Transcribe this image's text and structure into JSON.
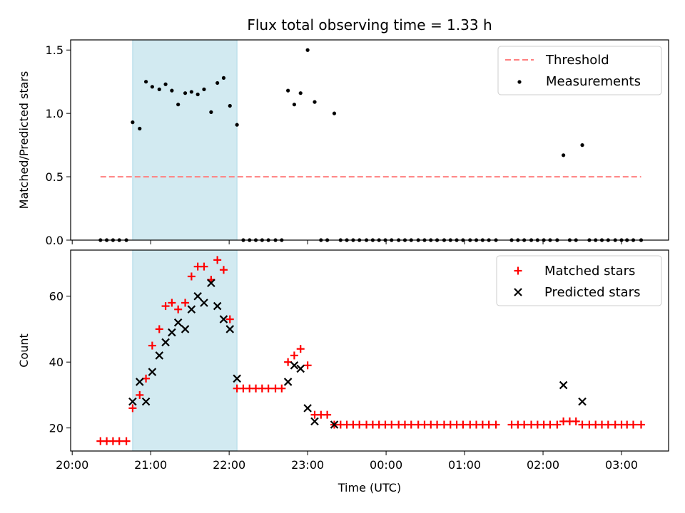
{
  "title": "Flux total observing time = 1.33 h",
  "xlabel": "Time (UTC)",
  "x_ticks": [
    "20:00",
    "21:00",
    "22:00",
    "23:00",
    "00:00",
    "01:00",
    "02:00",
    "03:00"
  ],
  "colors": {
    "threshold": "#ff7f7f",
    "measurement": "#000000",
    "matched": "#ff0000",
    "predicted": "#000000",
    "span": "#add8e6"
  },
  "chart_data": [
    {
      "type": "scatter",
      "ylabel": "Matched/Predicted stars",
      "ylim": [
        0,
        1.58
      ],
      "y_ticks": [
        "0.0",
        "0.5",
        "1.0",
        "1.5"
      ],
      "highlight_span_hours": [
        20.77,
        22.1
      ],
      "threshold": {
        "name": "Threshold",
        "value": 0.5,
        "x_range_hours": [
          20.36,
          27.25
        ]
      },
      "legend": [
        "Threshold",
        "Measurements"
      ],
      "legend_position": "top-right",
      "series": [
        {
          "name": "Measurements",
          "x_hours": [
            20.36,
            20.44,
            20.52,
            20.6,
            20.69,
            20.77,
            20.86,
            20.94,
            21.02,
            21.11,
            21.19,
            21.27,
            21.35,
            21.44,
            21.52,
            21.6,
            21.68,
            21.77,
            21.85,
            21.93,
            22.01,
            22.1,
            22.18,
            22.26,
            22.34,
            22.42,
            22.5,
            22.59,
            22.67,
            22.75,
            22.83,
            22.91,
            23.0,
            23.09,
            23.17,
            23.25,
            23.34,
            23.42,
            23.5,
            23.58,
            23.66,
            23.75,
            23.83,
            23.91,
            23.99,
            24.07,
            24.16,
            24.24,
            24.32,
            24.41,
            24.49,
            24.57,
            24.65,
            24.74,
            24.82,
            24.9,
            24.98,
            25.07,
            25.15,
            25.23,
            25.31,
            25.4,
            25.6,
            25.68,
            25.76,
            25.85,
            25.93,
            26.01,
            26.09,
            26.18,
            26.26,
            26.34,
            26.42,
            26.5,
            26.59,
            26.67,
            26.75,
            26.83,
            26.92,
            27.0,
            27.07,
            27.15,
            27.25
          ],
          "y": [
            0,
            0,
            0,
            0,
            0,
            0.93,
            0.88,
            1.25,
            1.21,
            1.19,
            1.23,
            1.18,
            1.07,
            1.16,
            1.17,
            1.15,
            1.19,
            1.01,
            1.24,
            1.28,
            1.06,
            0.91,
            0,
            0,
            0,
            0,
            0,
            0,
            0,
            1.18,
            1.07,
            1.16,
            1.5,
            1.09,
            0,
            0,
            1.0,
            0,
            0,
            0,
            0,
            0,
            0,
            0,
            0,
            0,
            0,
            0,
            0,
            0,
            0,
            0,
            0,
            0,
            0,
            0,
            0,
            0,
            0,
            0,
            0,
            0,
            0,
            0,
            0,
            0,
            0,
            0,
            0,
            0,
            0.67,
            0,
            0,
            0.75,
            0,
            0,
            0,
            0,
            0,
            0,
            0,
            0,
            0
          ]
        }
      ]
    },
    {
      "type": "scatter",
      "ylabel": "Count",
      "ylim": [
        13,
        74
      ],
      "y_ticks": [
        "20",
        "40",
        "60"
      ],
      "highlight_span_hours": [
        20.77,
        22.1
      ],
      "legend": [
        "Matched stars",
        "Predicted stars"
      ],
      "legend_position": "top-right",
      "series": [
        {
          "name": "Matched stars",
          "x_hours": [
            20.36,
            20.44,
            20.52,
            20.6,
            20.69,
            20.77,
            20.86,
            20.94,
            21.02,
            21.11,
            21.19,
            21.27,
            21.35,
            21.44,
            21.52,
            21.6,
            21.68,
            21.77,
            21.85,
            21.93,
            22.01,
            22.1,
            22.18,
            22.26,
            22.34,
            22.42,
            22.5,
            22.59,
            22.67,
            22.75,
            22.83,
            22.91,
            23.0,
            23.09,
            23.17,
            23.25,
            23.34,
            23.42,
            23.5,
            23.58,
            23.66,
            23.75,
            23.83,
            23.91,
            23.99,
            24.07,
            24.16,
            24.24,
            24.32,
            24.41,
            24.49,
            24.57,
            24.65,
            24.74,
            24.82,
            24.9,
            24.98,
            25.07,
            25.15,
            25.23,
            25.31,
            25.4,
            25.6,
            25.68,
            25.76,
            25.85,
            25.93,
            26.01,
            26.09,
            26.18,
            26.26,
            26.34,
            26.42,
            26.5,
            26.59,
            26.67,
            26.75,
            26.83,
            26.92,
            27.0,
            27.07,
            27.15,
            27.25
          ],
          "y": [
            16,
            16,
            16,
            16,
            16,
            26,
            30,
            35,
            45,
            50,
            57,
            58,
            56,
            58,
            66,
            69,
            69,
            65,
            71,
            68,
            53,
            32,
            32,
            32,
            32,
            32,
            32,
            32,
            32,
            40,
            42,
            44,
            39,
            24,
            24,
            24,
            21,
            21,
            21,
            21,
            21,
            21,
            21,
            21,
            21,
            21,
            21,
            21,
            21,
            21,
            21,
            21,
            21,
            21,
            21,
            21,
            21,
            21,
            21,
            21,
            21,
            21,
            21,
            21,
            21,
            21,
            21,
            21,
            21,
            21,
            22,
            22,
            22,
            21,
            21,
            21,
            21,
            21,
            21,
            21,
            21,
            21,
            21
          ]
        },
        {
          "name": "Predicted stars",
          "x_hours": [
            20.77,
            20.86,
            20.94,
            21.02,
            21.11,
            21.19,
            21.27,
            21.35,
            21.44,
            21.52,
            21.6,
            21.68,
            21.77,
            21.85,
            21.93,
            22.01,
            22.1,
            22.75,
            22.83,
            22.91,
            23.0,
            23.09,
            23.34,
            26.26,
            26.5
          ],
          "y": [
            28,
            34,
            28,
            37,
            42,
            46,
            49,
            52,
            50,
            56,
            60,
            58,
            64,
            57,
            53,
            50,
            35,
            34,
            39,
            38,
            26,
            22,
            21,
            33,
            28
          ]
        }
      ]
    }
  ]
}
